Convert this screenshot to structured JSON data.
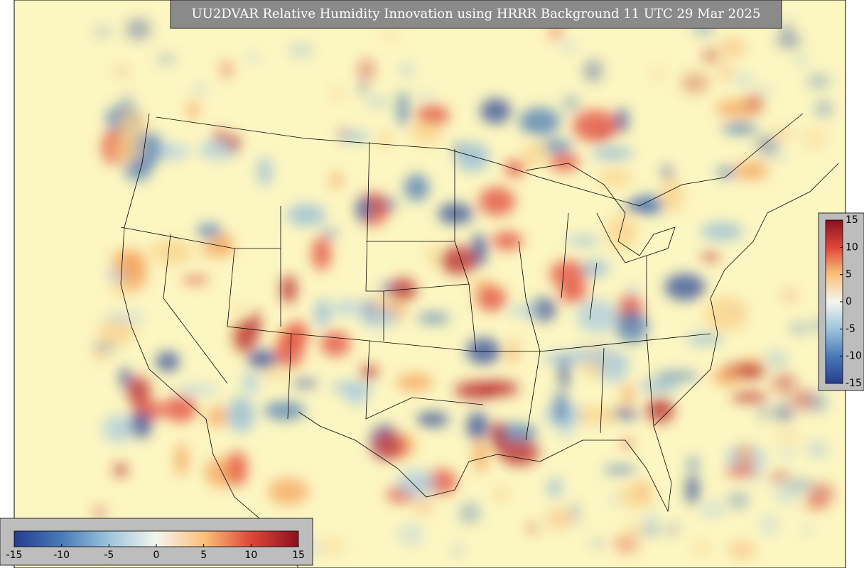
{
  "title": "UU2DVAR Relative Humidity Innovation using HRRR Background 11 UTC 29 Mar 2025",
  "colorbar_right": {
    "lim": [
      -15,
      15
    ],
    "ticks": [
      15,
      10,
      5,
      0,
      -5,
      -10,
      -15
    ]
  },
  "colorbar_bottom": {
    "lim": [
      -15,
      15
    ],
    "ticks": [
      -15,
      -10,
      -5,
      0,
      5,
      10,
      15
    ]
  }
}
